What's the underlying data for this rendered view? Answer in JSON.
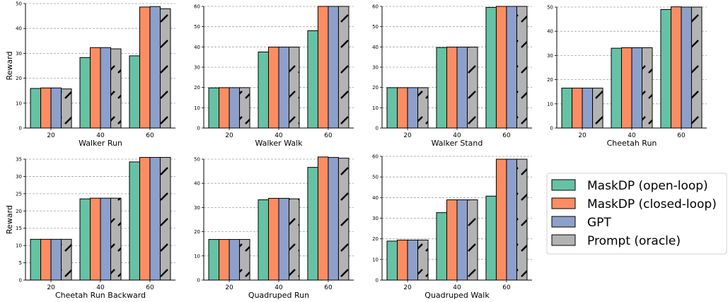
{
  "chart_data": {
    "type": "bar",
    "layout": "2x4 grid of grouped bar charts with shared legend",
    "ylabel": "Reward",
    "grid": "horizontal dashed gridlines on",
    "legend": {
      "placement": "right",
      "entries": [
        "MaskDP (open-loop)",
        "MaskDP (closed-loop)",
        "GPT",
        "Prompt (oracle)"
      ]
    },
    "colors": [
      "#66c2a5",
      "#fc8d62",
      "#8da0cb",
      "#b3b3b3"
    ],
    "hatch_series": "Prompt (oracle)",
    "panels": [
      {
        "xlabel": "Walker Run",
        "categories": [
          "20",
          "40",
          "60"
        ],
        "ylim": [
          0,
          50
        ],
        "yticks": [
          0,
          10,
          20,
          30,
          40,
          50
        ],
        "show_ylabel": true,
        "series": [
          {
            "name": "MaskDP (open-loop)",
            "values": [
              15.9,
              28.3,
              29.0
            ]
          },
          {
            "name": "MaskDP (closed-loop)",
            "values": [
              16.1,
              32.3,
              48.6
            ]
          },
          {
            "name": "GPT",
            "values": [
              16.1,
              32.3,
              48.8
            ]
          },
          {
            "name": "Prompt (oracle)",
            "values": [
              15.7,
              31.8,
              47.9
            ]
          }
        ]
      },
      {
        "xlabel": "Walker Walk",
        "categories": [
          "20",
          "40",
          "60"
        ],
        "ylim": [
          0,
          60
        ],
        "yticks": [
          0,
          10,
          20,
          30,
          40,
          50,
          60
        ],
        "show_ylabel": false,
        "series": [
          {
            "name": "MaskDP (open-loop)",
            "values": [
              19.8,
              37.5,
              48.0
            ]
          },
          {
            "name": "MaskDP (closed-loop)",
            "values": [
              19.9,
              39.9,
              60.0
            ]
          },
          {
            "name": "GPT",
            "values": [
              19.9,
              39.9,
              60.0
            ]
          },
          {
            "name": "Prompt (oracle)",
            "values": [
              19.9,
              39.9,
              60.0
            ]
          }
        ]
      },
      {
        "xlabel": "Walker Stand",
        "categories": [
          "20",
          "40",
          "60"
        ],
        "ylim": [
          0,
          60
        ],
        "yticks": [
          0,
          10,
          20,
          30,
          40,
          50,
          60
        ],
        "show_ylabel": false,
        "series": [
          {
            "name": "MaskDP (open-loop)",
            "values": [
              19.9,
              39.7,
              59.5
            ]
          },
          {
            "name": "MaskDP (closed-loop)",
            "values": [
              19.9,
              39.9,
              60.0
            ]
          },
          {
            "name": "GPT",
            "values": [
              19.9,
              39.9,
              60.0
            ]
          },
          {
            "name": "Prompt (oracle)",
            "values": [
              19.9,
              39.9,
              60.0
            ]
          }
        ]
      },
      {
        "xlabel": "Cheetah Run",
        "categories": [
          "20",
          "40",
          "60"
        ],
        "ylim": [
          0,
          50
        ],
        "yticks": [
          0,
          10,
          20,
          30,
          40,
          50
        ],
        "show_ylabel": false,
        "series": [
          {
            "name": "MaskDP (open-loop)",
            "values": [
              16.5,
              33.0,
              49.0
            ]
          },
          {
            "name": "MaskDP (closed-loop)",
            "values": [
              16.5,
              33.2,
              50.1
            ]
          },
          {
            "name": "GPT",
            "values": [
              16.5,
              33.2,
              50.0
            ]
          },
          {
            "name": "Prompt (oracle)",
            "values": [
              16.5,
              33.2,
              50.0
            ]
          }
        ]
      },
      {
        "xlabel": "Cheetah Run Backward",
        "categories": [
          "20",
          "40",
          "60"
        ],
        "ylim": [
          0,
          35
        ],
        "yticks": [
          0,
          5,
          10,
          15,
          20,
          25,
          30,
          35
        ],
        "show_ylabel": true,
        "series": [
          {
            "name": "MaskDP (open-loop)",
            "values": [
              11.8,
              23.5,
              34.2
            ]
          },
          {
            "name": "MaskDP (closed-loop)",
            "values": [
              11.8,
              23.7,
              35.5
            ]
          },
          {
            "name": "GPT",
            "values": [
              11.8,
              23.7,
              35.5
            ]
          },
          {
            "name": "Prompt (oracle)",
            "values": [
              11.8,
              23.7,
              35.5
            ]
          }
        ]
      },
      {
        "xlabel": "Quadruped Run",
        "categories": [
          "20",
          "40",
          "60"
        ],
        "ylim": [
          0,
          50
        ],
        "yticks": [
          0,
          10,
          20,
          30,
          40,
          50
        ],
        "show_ylabel": false,
        "series": [
          {
            "name": "MaskDP (open-loop)",
            "values": [
              16.8,
              33.2,
              46.6
            ]
          },
          {
            "name": "MaskDP (closed-loop)",
            "values": [
              16.8,
              33.8,
              50.9
            ]
          },
          {
            "name": "GPT",
            "values": [
              16.8,
              33.8,
              50.7
            ]
          },
          {
            "name": "Prompt (oracle)",
            "values": [
              16.8,
              33.6,
              50.4
            ]
          }
        ]
      },
      {
        "xlabel": "Quadruped Walk",
        "categories": [
          "20",
          "40",
          "60"
        ],
        "ylim": [
          0,
          60
        ],
        "yticks": [
          0,
          10,
          20,
          30,
          40,
          50,
          60
        ],
        "show_ylabel": false,
        "series": [
          {
            "name": "MaskDP (open-loop)",
            "values": [
              18.9,
              32.7,
              40.7
            ]
          },
          {
            "name": "MaskDP (closed-loop)",
            "values": [
              19.4,
              38.9,
              58.6
            ]
          },
          {
            "name": "GPT",
            "values": [
              19.4,
              38.9,
              58.6
            ]
          },
          {
            "name": "Prompt (oracle)",
            "values": [
              19.4,
              38.9,
              58.6
            ]
          }
        ]
      }
    ]
  }
}
